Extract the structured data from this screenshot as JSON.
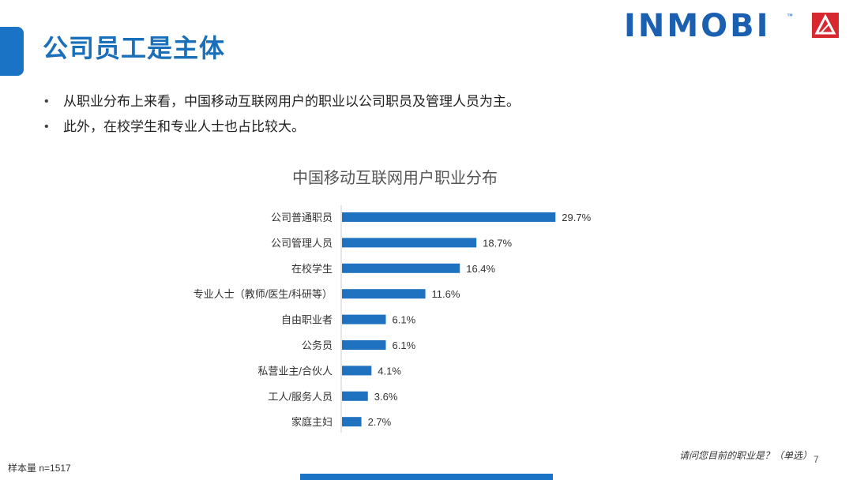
{
  "slide": {
    "title": "公司员工是主体",
    "bullets": [
      "从职业分布上来看，中国移动互联网用户的职业以公司职员及管理人员为主。",
      "此外，在校学生和专业人士也占比较大。"
    ],
    "bullet_symbol": "•",
    "sample_note": "样本量 n=1517",
    "question_note": "请问您目前的职业是？（单选）",
    "page_number": "7"
  },
  "logo": {
    "text": "INMOBI",
    "tm": "™",
    "colors": {
      "text": "#1a5fb0",
      "mark": "#d7282f"
    }
  },
  "colors": {
    "accent": "#1a73c4",
    "bar": "#1f72bf",
    "title": "#1a6fba"
  },
  "chart_data": {
    "type": "bar",
    "orientation": "horizontal",
    "title": "中国移动互联网用户职业分布",
    "categories": [
      "公司普通职员",
      "公司管理人员",
      "在校学生",
      "专业人士（教师/医生/科研等）",
      "自由职业者",
      "公务员",
      "私营业主/合伙人",
      "工人/服务人员",
      "家庭主妇"
    ],
    "values": [
      29.7,
      18.7,
      16.4,
      11.6,
      6.1,
      6.1,
      4.1,
      3.6,
      2.7
    ],
    "value_labels": [
      "29.7%",
      "18.7%",
      "16.4%",
      "11.6%",
      "6.1%",
      "6.1%",
      "4.1%",
      "3.6%",
      "2.7%"
    ],
    "xlim": [
      0,
      100
    ],
    "grid": false,
    "legend": "none"
  }
}
